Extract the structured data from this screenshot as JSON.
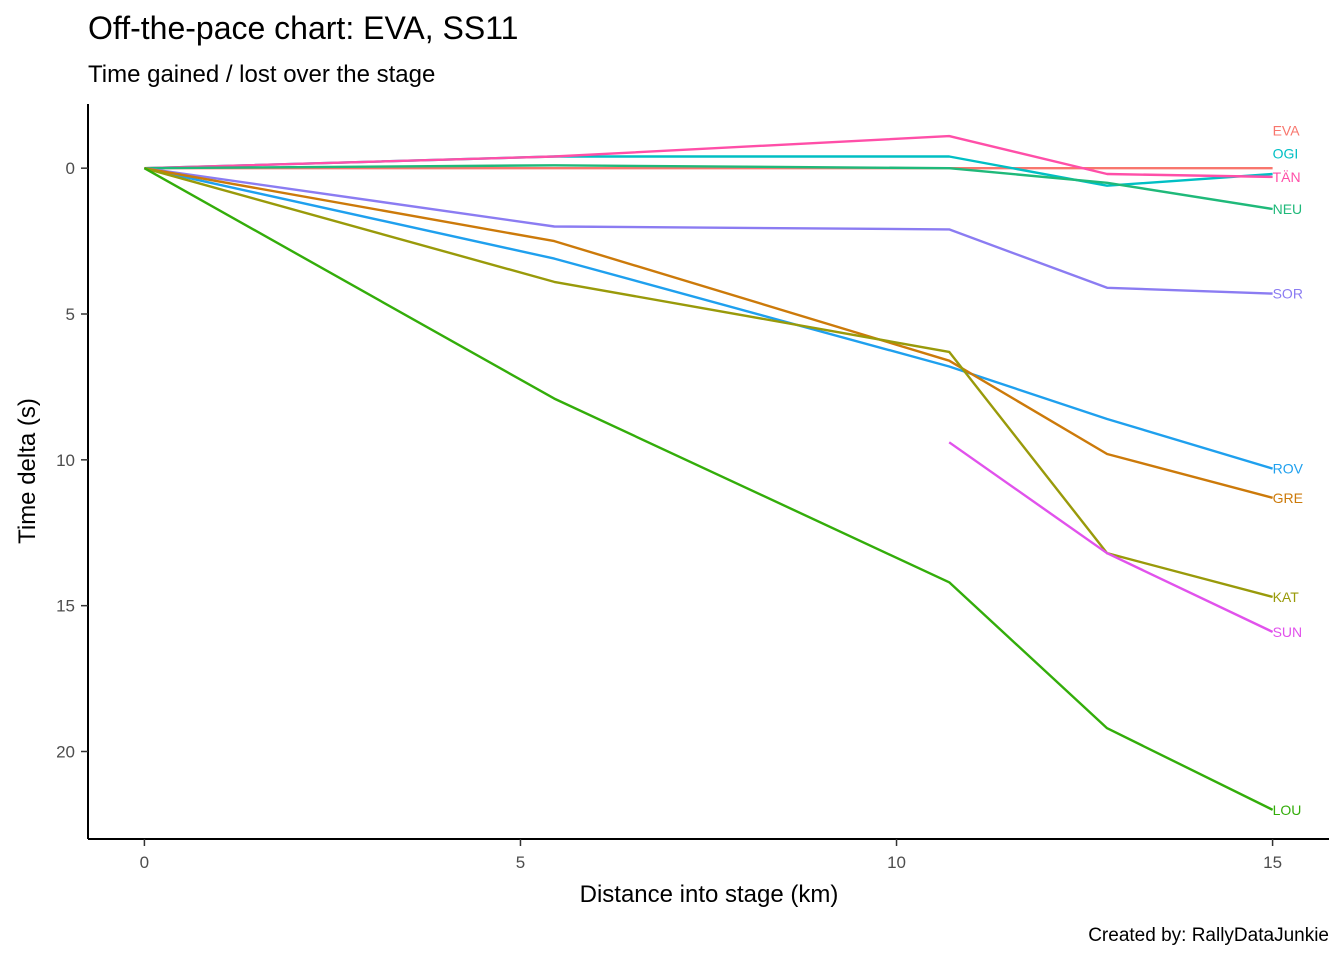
{
  "chart_data": {
    "type": "line",
    "title": "Off-the-pace chart: EVA, SS11",
    "subtitle": "Time gained / lost over the stage",
    "xlabel": "Distance into stage (km)",
    "ylabel": "Time delta (s)",
    "caption": "Created by: RallyDataJunkie",
    "xlim": [
      -0.75,
      15.75
    ],
    "ylim": [
      -2.2,
      23.0
    ],
    "y_reversed": true,
    "x_ticks": [
      0,
      5,
      10,
      15
    ],
    "y_ticks": [
      0,
      5,
      10,
      15,
      20
    ],
    "grid": false,
    "legend": "none",
    "series": [
      {
        "name": "EVA",
        "color": "#F8766D",
        "x": [
          0,
          15
        ],
        "y": [
          0,
          0
        ],
        "label_y": -1.3
      },
      {
        "name": "OGI",
        "color": "#00BFC4",
        "x": [
          0,
          5.45,
          10.7,
          12.8,
          15
        ],
        "y": [
          0,
          -0.4,
          -0.4,
          0.6,
          0.2
        ],
        "label_y": -0.5
      },
      {
        "name": "TÄN",
        "color": "#FF4FA8",
        "x": [
          0,
          5.45,
          10.7,
          12.8,
          15
        ],
        "y": [
          0,
          -0.4,
          -1.1,
          0.2,
          0.3
        ],
        "label_y": 0.3
      },
      {
        "name": "NEU",
        "color": "#1FB97A",
        "x": [
          0,
          5.45,
          10.7,
          12.8,
          15
        ],
        "y": [
          0,
          -0.1,
          0,
          0.5,
          1.4
        ],
        "label_y": 1.4
      },
      {
        "name": "SOR",
        "color": "#8B7CF2",
        "x": [
          0,
          5.45,
          10.7,
          12.8,
          15
        ],
        "y": [
          0,
          2.0,
          2.1,
          4.1,
          4.3
        ],
        "label_y": 4.3
      },
      {
        "name": "ROV",
        "color": "#1FA0EE",
        "x": [
          0,
          5.45,
          10.7,
          12.8,
          15
        ],
        "y": [
          0,
          3.1,
          6.8,
          8.6,
          10.3
        ],
        "label_y": 10.3
      },
      {
        "name": "GRE",
        "color": "#CC7A0A",
        "x": [
          0,
          5.45,
          10.7,
          12.8,
          15
        ],
        "y": [
          0,
          2.5,
          6.6,
          9.8,
          11.3
        ],
        "label_y": 11.3
      },
      {
        "name": "KAT",
        "color": "#999A0A",
        "x": [
          0,
          5.45,
          10.7,
          12.8,
          15
        ],
        "y": [
          0,
          3.9,
          6.3,
          13.2,
          14.7
        ],
        "label_y": 14.7
      },
      {
        "name": "SUN",
        "color": "#E152EC",
        "x": [
          10.7,
          12.8,
          15
        ],
        "y": [
          9.4,
          13.2,
          15.9
        ],
        "label_y": 15.9
      },
      {
        "name": "LOU",
        "color": "#33AD0A",
        "x": [
          0,
          5.45,
          10.7,
          12.8,
          15
        ],
        "y": [
          0,
          7.9,
          14.2,
          19.2,
          22.0
        ],
        "label_y": 22.0
      }
    ]
  }
}
